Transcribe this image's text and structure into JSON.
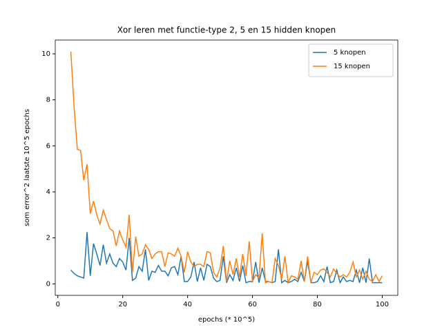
{
  "chart_data": {
    "type": "line",
    "title": "Xor leren met functie-type 2, 5 en 15 hidden knopen",
    "x_label": "epochs (* 10^5)",
    "y_label": "som error^2 laatste 10^5 epochs",
    "x": [
      4,
      5,
      6,
      7,
      8,
      9,
      10,
      11,
      12,
      13,
      14,
      15,
      16,
      17,
      18,
      19,
      20,
      21,
      22,
      23,
      24,
      25,
      26,
      27,
      28,
      29,
      30,
      31,
      32,
      33,
      34,
      35,
      36,
      37,
      38,
      39,
      40,
      41,
      42,
      43,
      44,
      45,
      46,
      47,
      48,
      49,
      50,
      51,
      52,
      53,
      54,
      55,
      56,
      57,
      58,
      59,
      60,
      61,
      62,
      63,
      64,
      65,
      66,
      67,
      68,
      69,
      70,
      71,
      72,
      73,
      74,
      75,
      76,
      77,
      78,
      79,
      80,
      81,
      82,
      83,
      84,
      85,
      86,
      87,
      88,
      89,
      90,
      91,
      92,
      93,
      94,
      95,
      96,
      97,
      98,
      99,
      100
    ],
    "series": [
      {
        "name": "5 knopen",
        "color": "#1f77b4",
        "values": [
          0.6,
          0.45,
          0.35,
          0.3,
          0.25,
          2.25,
          0.35,
          1.75,
          1.3,
          0.8,
          1.7,
          0.9,
          1.3,
          0.9,
          0.75,
          1.1,
          0.95,
          0.6,
          2.0,
          0.15,
          0.25,
          0.75,
          0.55,
          1.5,
          0.15,
          0.55,
          0.5,
          0.8,
          0.55,
          0.55,
          0.35,
          0.7,
          0.75,
          0.4,
          1.2,
          0.1,
          0.1,
          0.3,
          0.95,
          0.1,
          0.7,
          0.15,
          0.85,
          0.75,
          0.25,
          0.1,
          0.15,
          1.2,
          0.05,
          0.4,
          0.15,
          0.7,
          0.1,
          0.8,
          0.05,
          0.1,
          0.1,
          0.95,
          0.05,
          0.7,
          0.1,
          0.1,
          0.05,
          0.1,
          1.5,
          0.05,
          0.15,
          0.05,
          0.1,
          0.2,
          0.1,
          0.5,
          0.1,
          1.0,
          0.05,
          0.05,
          0.1,
          0.35,
          0.1,
          0.75,
          0.05,
          0.1,
          0.6,
          0.05,
          0.3,
          0.1,
          0.15,
          0.1,
          0.6,
          0.05,
          0.7,
          0.05,
          1.1,
          0.05,
          0.05,
          0.05,
          0.05
        ]
      },
      {
        "name": "15 knopen",
        "color": "#ff7f0e",
        "values": [
          10.1,
          7.7,
          5.85,
          5.8,
          4.5,
          5.2,
          3.05,
          3.6,
          3.0,
          2.6,
          3.2,
          2.8,
          2.4,
          2.3,
          1.65,
          2.3,
          1.9,
          1.6,
          3.0,
          0.5,
          2.05,
          1.2,
          1.3,
          1.7,
          1.5,
          1.1,
          1.3,
          1.4,
          1.4,
          0.75,
          1.35,
          1.3,
          1.2,
          1.55,
          1.2,
          0.5,
          1.4,
          0.95,
          0.75,
          0.85,
          0.85,
          0.75,
          1.4,
          1.35,
          0.5,
          0.3,
          0.7,
          1.65,
          0.1,
          1.0,
          0.4,
          1.1,
          0.3,
          1.3,
          0.35,
          1.85,
          0.1,
          0.4,
          0.25,
          2.2,
          0.05,
          0.1,
          0.05,
          1.1,
          0.8,
          0.2,
          1.2,
          0.05,
          0.35,
          0.3,
          0.2,
          1.0,
          0.1,
          1.2,
          0.05,
          0.5,
          0.4,
          0.6,
          0.65,
          0.5,
          0.3,
          0.65,
          0.45,
          0.3,
          0.4,
          0.3,
          0.5,
          0.95,
          0.3,
          0.6,
          0.2,
          0.55,
          0.2,
          0.1,
          0.4,
          0.1,
          0.35
        ]
      }
    ],
    "xlim": [
      -0.8,
      104.8
    ],
    "ylim": [
      -0.5,
      10.6
    ],
    "xticks": [
      0,
      20,
      40,
      60,
      80,
      100
    ],
    "yticks": [
      0,
      2,
      4,
      6,
      8,
      10
    ],
    "legend": "upper right"
  }
}
